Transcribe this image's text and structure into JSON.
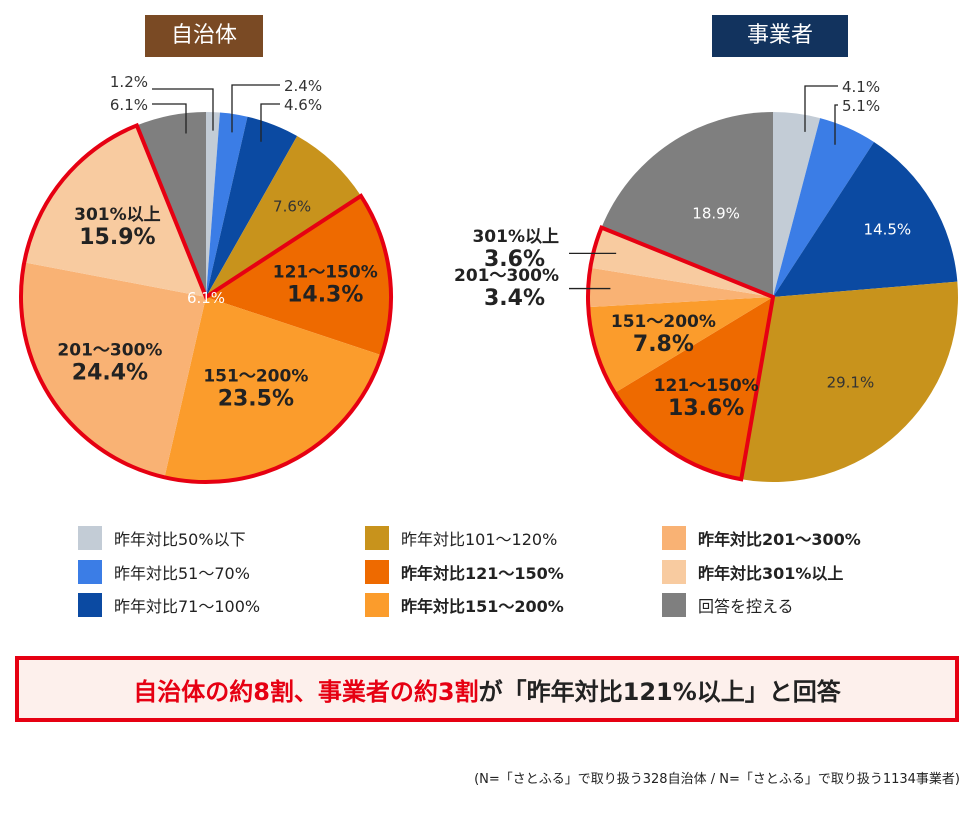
{
  "chart_data": [
    {
      "type": "pie",
      "title": "自治体",
      "series": [
        {
          "label": "昨年対比50%以下",
          "display": "1.2%",
          "value": 1.2,
          "color": "#c3ccd6"
        },
        {
          "label": "昨年対比51〜70%",
          "display": "2.4%",
          "value": 2.4,
          "color": "#3b7de6"
        },
        {
          "label": "昨年対比71〜100%",
          "display": "4.6%",
          "value": 4.6,
          "color": "#0b4aa2"
        },
        {
          "label": "昨年対比101〜120%",
          "display": "7.6%",
          "value": 7.6,
          "color": "#c8931c"
        },
        {
          "label": "昨年対比121〜150%",
          "display": "14.3%",
          "value": 14.3,
          "color": "#ee6a00",
          "range": "121〜150%"
        },
        {
          "label": "昨年対比151〜200%",
          "display": "23.5%",
          "value": 23.5,
          "color": "#fb9c2c",
          "range": "151〜200%"
        },
        {
          "label": "昨年対比201〜300%",
          "display": "24.4%",
          "value": 24.4,
          "color": "#f9b274",
          "range": "201〜300%"
        },
        {
          "label": "昨年対比301%以上",
          "display": "15.9%",
          "value": 15.9,
          "color": "#f8cba0",
          "range": "301%以上"
        },
        {
          "label": "回答を控える",
          "display": "6.1%",
          "value": 6.1,
          "color": "#7f7f7f"
        }
      ]
    },
    {
      "type": "pie",
      "title": "事業者",
      "series": [
        {
          "label": "昨年対比50%以下",
          "display": "4.1%",
          "value": 4.1,
          "color": "#c3ccd6"
        },
        {
          "label": "昨年対比51〜70%",
          "display": "5.1%",
          "value": 5.1,
          "color": "#3b7de6"
        },
        {
          "label": "昨年対比71〜100%",
          "display": "14.5%",
          "value": 14.5,
          "color": "#0b4aa2"
        },
        {
          "label": "昨年対比101〜120%",
          "display": "29.1%",
          "value": 29.1,
          "color": "#c8931c"
        },
        {
          "label": "昨年対比121〜150%",
          "display": "13.6%",
          "value": 13.6,
          "color": "#ee6a00",
          "range": "121〜150%"
        },
        {
          "label": "昨年対比151〜200%",
          "display": "7.8%",
          "value": 7.8,
          "color": "#fb9c2c",
          "range": "151〜200%"
        },
        {
          "label": "昨年対比201〜300%",
          "display": "3.4%",
          "value": 3.4,
          "color": "#f9b274",
          "range": "201〜300%"
        },
        {
          "label": "昨年対比301%以上",
          "display": "3.6%",
          "value": 3.6,
          "color": "#f8cba0",
          "range": "301%以上"
        },
        {
          "label": "回答を控える",
          "display": "18.9%",
          "value": 18.9,
          "color": "#7f7f7f"
        }
      ]
    }
  ],
  "legend": [
    {
      "label": "昨年対比50%以下",
      "color": "#c3ccd6",
      "bold": false
    },
    {
      "label": "昨年対比51〜70%",
      "color": "#3b7de6",
      "bold": false
    },
    {
      "label": "昨年対比71〜100%",
      "color": "#0b4aa2",
      "bold": false
    },
    {
      "label": "昨年対比101〜120%",
      "color": "#c8931c",
      "bold": false
    },
    {
      "label": "昨年対比121〜150%",
      "color": "#ee6a00",
      "bold": true
    },
    {
      "label": "昨年対比151〜200%",
      "color": "#fb9c2c",
      "bold": true
    },
    {
      "label": "昨年対比201〜300%",
      "color": "#f9b274",
      "bold": true
    },
    {
      "label": "昨年対比301%以上",
      "color": "#f8cba0",
      "bold": true
    },
    {
      "label": "回答を控える",
      "color": "#7f7f7f",
      "bold": false
    }
  ],
  "highlight_color": "#e60012",
  "callout": {
    "part1": "自治体の約8割、事業者の約3割",
    "part2": "が「昨年対比121%以上」と回答"
  },
  "note": "(N=「さとふる」で取り扱う328自治体 / N=「さとふる」で取り扱う1134事業者)"
}
